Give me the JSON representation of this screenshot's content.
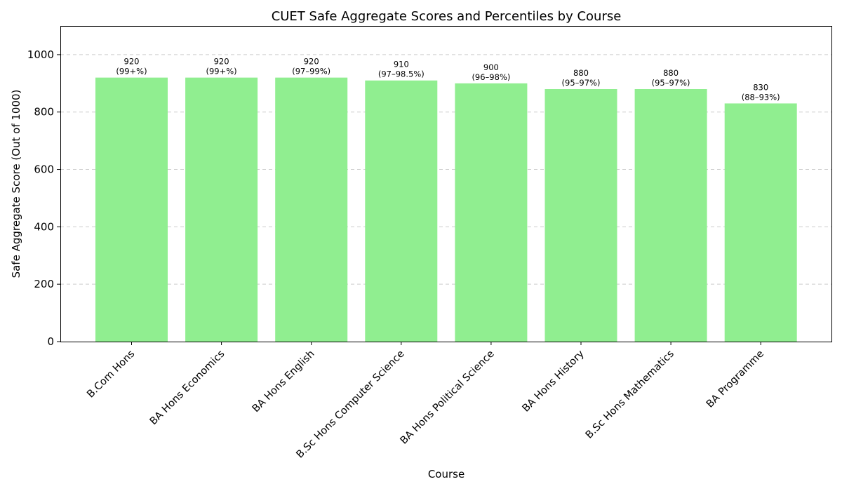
{
  "chart_data": {
    "type": "bar",
    "title": "CUET Safe Aggregate Scores and Percentiles by Course",
    "xlabel": "Course",
    "ylabel": "Safe Aggregate Score (Out of 1000)",
    "ylim": [
      0,
      1100
    ],
    "yticks": [
      0,
      200,
      400,
      600,
      800,
      1000
    ],
    "grid": "y-dashed",
    "bar_color": "#90ee90",
    "categories": [
      "B.Com Hons",
      "BA Hons Economics",
      "BA Hons English",
      "B.Sc Hons Computer Science",
      "BA Hons Political Science",
      "BA Hons History",
      "B.Sc Hons Mathematics",
      "BA Programme"
    ],
    "values": [
      920,
      920,
      920,
      910,
      900,
      880,
      880,
      830
    ],
    "percentiles": [
      "(99+%)",
      "(99+%)",
      "(97–99%)",
      "(97–98.5%)",
      "(96–98%)",
      "(95–97%)",
      "(95–97%)",
      "(88–93%)"
    ]
  }
}
